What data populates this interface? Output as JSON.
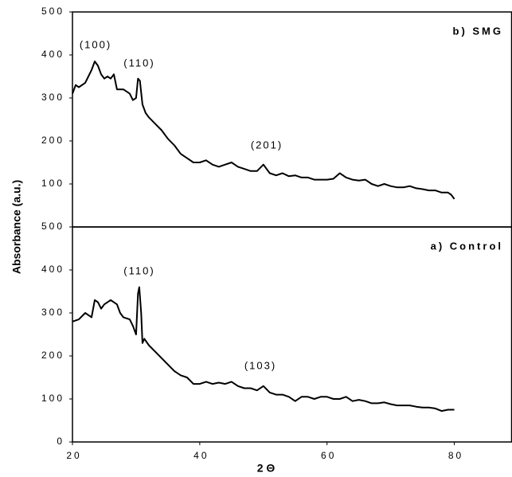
{
  "chart_data": [
    {
      "type": "line",
      "annotations": [
        "(100)",
        "(110)",
        "(201)"
      ],
      "xlim": [
        20,
        89
      ],
      "ylim": [
        0,
        500
      ],
      "yticks": [
        100,
        200,
        300,
        400,
        500
      ],
      "x": [
        20,
        20.5,
        21,
        22,
        22.5,
        23,
        23.5,
        24,
        24.5,
        25,
        25.5,
        26,
        26.5,
        27,
        28,
        29,
        29.5,
        30,
        30.3,
        30.6,
        31,
        31.5,
        32,
        33,
        34,
        35,
        36,
        37,
        38,
        39,
        40,
        41,
        42,
        43,
        44,
        45,
        46,
        47,
        48,
        49,
        50,
        50.5,
        51,
        52,
        53,
        54,
        55,
        56,
        57,
        58,
        59,
        60,
        61,
        62,
        63,
        64,
        65,
        66,
        67,
        68,
        69,
        70,
        71,
        72,
        73,
        74,
        75,
        76,
        77,
        78,
        79,
        79.5,
        80
      ],
      "series": [
        {
          "name": "b) SMG",
          "color": "#000000",
          "values": [
            310,
            330,
            325,
            335,
            350,
            365,
            385,
            375,
            355,
            345,
            350,
            345,
            355,
            320,
            320,
            310,
            295,
            300,
            345,
            340,
            285,
            265,
            255,
            240,
            225,
            205,
            190,
            170,
            160,
            150,
            150,
            155,
            145,
            140,
            145,
            150,
            140,
            135,
            130,
            130,
            145,
            135,
            125,
            120,
            125,
            118,
            120,
            115,
            115,
            110,
            110,
            110,
            112,
            125,
            115,
            110,
            108,
            110,
            100,
            95,
            100,
            95,
            92,
            92,
            95,
            90,
            88,
            85,
            85,
            80,
            80,
            75,
            65
          ]
        }
      ]
    },
    {
      "type": "line",
      "annotations": [
        "(110)",
        "(103)"
      ],
      "xlabel": "2 Θ",
      "ylabel": "Absorbance (a.u.)",
      "xlim": [
        20,
        89
      ],
      "ylim": [
        0,
        500
      ],
      "yticks": [
        0,
        100,
        200,
        300,
        400,
        500
      ],
      "xticks": [
        20,
        40,
        60,
        80
      ],
      "x": [
        20,
        21,
        22,
        22.5,
        23,
        23.5,
        24,
        24.5,
        25,
        26,
        27,
        27.5,
        28,
        29,
        29.5,
        30,
        30.3,
        30.5,
        30.8,
        31,
        31.3,
        32,
        33,
        34,
        35,
        36,
        37,
        38,
        39,
        40,
        41,
        42,
        43,
        44,
        45,
        46,
        47,
        48,
        49,
        50,
        51,
        52,
        53,
        54,
        55,
        56,
        57,
        58,
        59,
        60,
        61,
        62,
        63,
        64,
        65,
        66,
        67,
        68,
        69,
        70,
        71,
        72,
        73,
        74,
        75,
        76,
        77,
        78,
        79,
        80
      ],
      "series": [
        {
          "name": "a) Control",
          "color": "#000000",
          "values": [
            280,
            285,
            300,
            295,
            290,
            330,
            325,
            310,
            320,
            330,
            320,
            300,
            290,
            285,
            270,
            250,
            345,
            360,
            300,
            230,
            240,
            225,
            210,
            195,
            180,
            165,
            155,
            150,
            135,
            135,
            140,
            135,
            138,
            135,
            140,
            130,
            125,
            125,
            120,
            130,
            115,
            110,
            110,
            105,
            95,
            105,
            105,
            100,
            105,
            105,
            100,
            100,
            105,
            95,
            98,
            95,
            90,
            90,
            92,
            88,
            85,
            85,
            85,
            82,
            80,
            80,
            78,
            72,
            75,
            75
          ]
        }
      ]
    }
  ]
}
